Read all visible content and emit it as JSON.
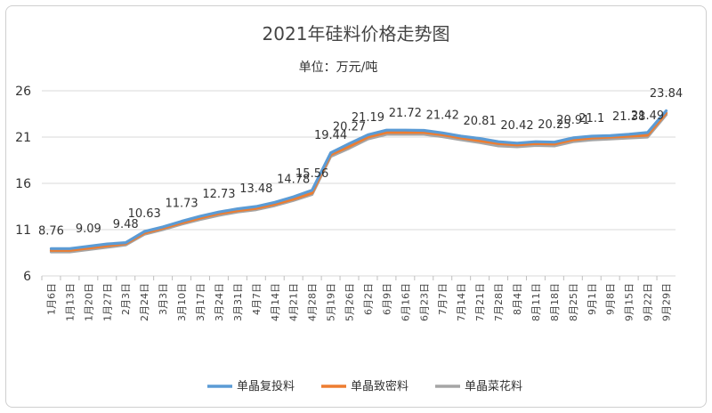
{
  "chart_data": {
    "type": "line",
    "title": "2021年硅料价格走势图",
    "subtitle": "单位：万元/吨",
    "ylim": [
      6,
      26
    ],
    "yticks": [
      6,
      11,
      16,
      21,
      26
    ],
    "grid": true,
    "legend_position": "bottom",
    "categories": [
      "1月6日",
      "1月13日",
      "1月20日",
      "1月27日",
      "2月3日",
      "2月24日",
      "3月3日",
      "3月10日",
      "3月17日",
      "3月24日",
      "3月31日",
      "4月7日",
      "4月14日",
      "4月21日",
      "4月28日",
      "5月19日",
      "5月26日",
      "6月2日",
      "6月9日",
      "6月16日",
      "6月23日",
      "7月7日",
      "7月14日",
      "7月21日",
      "7月28日",
      "8月4日",
      "8月11日",
      "8月18日",
      "8月25日",
      "9月1日",
      "9月8日",
      "9月15日",
      "9月22日",
      "9月29日"
    ],
    "series": [
      {
        "name": "单晶复投料",
        "color": "#5b9bd5",
        "values": [
          8.95,
          8.95,
          9.2,
          9.45,
          9.6,
          10.8,
          11.3,
          11.9,
          12.45,
          12.9,
          13.25,
          13.5,
          13.95,
          14.55,
          15.25,
          19.3,
          20.3,
          21.25,
          21.75,
          21.75,
          21.72,
          21.45,
          21.1,
          20.85,
          20.5,
          20.35,
          20.5,
          20.45,
          20.91,
          21.1,
          21.15,
          21.3,
          21.49,
          23.84
        ]
      },
      {
        "name": "单晶致密料",
        "color": "#ed7d31",
        "values": [
          8.76,
          8.76,
          9.0,
          9.25,
          9.48,
          10.63,
          11.15,
          11.73,
          12.25,
          12.73,
          13.05,
          13.3,
          13.75,
          14.3,
          14.96,
          19.1,
          20.0,
          21.0,
          21.5,
          21.5,
          21.5,
          21.25,
          20.9,
          20.6,
          20.3,
          20.15,
          20.3,
          20.25,
          20.7,
          20.9,
          21.0,
          21.1,
          21.2,
          23.6
        ]
      },
      {
        "name": "单晶菜花料",
        "color": "#a5a5a5",
        "values": [
          8.6,
          8.6,
          8.85,
          9.1,
          9.35,
          10.5,
          11.0,
          11.6,
          12.1,
          12.55,
          12.9,
          13.15,
          13.6,
          14.15,
          14.8,
          18.9,
          19.8,
          20.8,
          21.3,
          21.3,
          21.3,
          21.05,
          20.7,
          20.4,
          20.05,
          19.95,
          20.1,
          20.05,
          20.5,
          20.7,
          20.8,
          20.9,
          21.0,
          23.4
        ]
      }
    ],
    "data_labels": [
      {
        "text": "8.76",
        "index": 0
      },
      {
        "text": "9.09",
        "index": 2
      },
      {
        "text": "9.48",
        "index": 4
      },
      {
        "text": "10.63",
        "index": 5
      },
      {
        "text": "11.73",
        "index": 7
      },
      {
        "text": "12.73",
        "index": 9
      },
      {
        "text": "13.48",
        "index": 11
      },
      {
        "text": "14.78",
        "index": 13
      },
      {
        "text": "15.56",
        "index": 14
      },
      {
        "text": "19.44",
        "index": 15
      },
      {
        "text": "20.27",
        "index": 16
      },
      {
        "text": "21.19",
        "index": 17
      },
      {
        "text": "21.72",
        "index": 19
      },
      {
        "text": "21.42",
        "index": 21
      },
      {
        "text": "20.81",
        "index": 23
      },
      {
        "text": "20.42",
        "index": 25
      },
      {
        "text": "20.25",
        "index": 27
      },
      {
        "text": "20.91",
        "index": 28
      },
      {
        "text": "21.1",
        "index": 29
      },
      {
        "text": "21.38",
        "index": 31
      },
      {
        "text": "21.49",
        "index": 32
      },
      {
        "text": "23.84",
        "index": 33
      }
    ]
  }
}
